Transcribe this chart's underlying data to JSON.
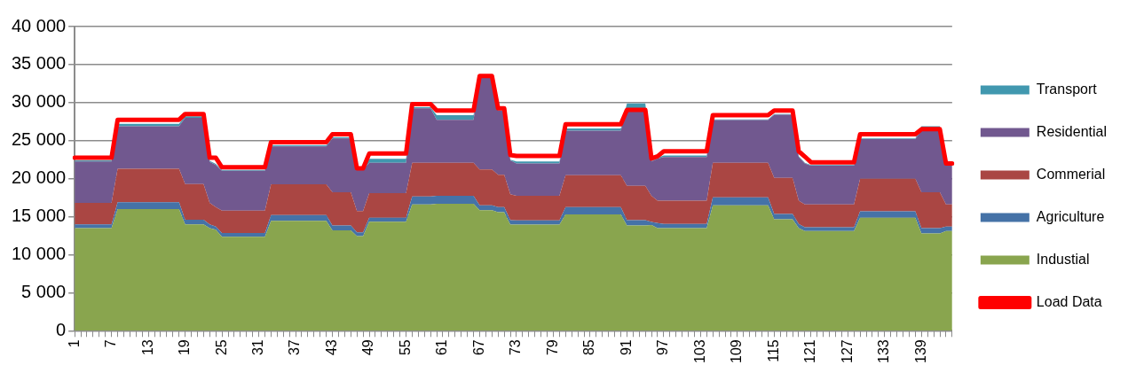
{
  "chart_data": {
    "type": "area",
    "stacked": true,
    "marker": "none",
    "grid": "y",
    "legend": "right",
    "categories": [
      "1",
      null,
      null,
      null,
      null,
      null,
      "7",
      null,
      null,
      null,
      null,
      null,
      "13",
      null,
      null,
      null,
      null,
      null,
      "19",
      null,
      null,
      null,
      null,
      null,
      "25",
      null,
      null,
      null,
      null,
      null,
      "31",
      null,
      null,
      null,
      null,
      null,
      "37",
      null,
      null,
      null,
      null,
      null,
      "43",
      null,
      null,
      null,
      null,
      null,
      "49",
      null,
      null,
      null,
      null,
      null,
      "55",
      null,
      null,
      null,
      null,
      null,
      "61",
      null,
      null,
      null,
      null,
      null,
      "67",
      null,
      null,
      null,
      null,
      null,
      "73",
      null,
      null,
      null,
      null,
      null,
      "79",
      null,
      null,
      null,
      null,
      null,
      "85",
      null,
      null,
      null,
      null,
      null,
      "91",
      null,
      null,
      null,
      null,
      null,
      "97",
      null,
      null,
      null,
      null,
      null,
      "103",
      null,
      null,
      null,
      null,
      null,
      "109",
      null,
      null,
      null,
      null,
      null,
      "115",
      null,
      null,
      null,
      null,
      null,
      "121",
      null,
      null,
      null,
      null,
      null,
      "127",
      null,
      null,
      null,
      null,
      null,
      "133",
      null,
      null,
      null,
      null,
      null,
      "139",
      null,
      null,
      null,
      null,
      null
    ],
    "ylim": [
      0,
      40000
    ],
    "yticks": [
      0,
      {
        "value": 5000,
        "label": "5 000"
      },
      {
        "value": 10000,
        "label": "10 000"
      },
      {
        "value": 15000,
        "label": "15 000"
      },
      {
        "value": 20000,
        "label": "20 000"
      },
      {
        "value": 25000,
        "label": "25 000"
      },
      {
        "value": 30000,
        "label": "30 000"
      },
      {
        "value": 35000,
        "label": "35 000"
      },
      {
        "value": 40000,
        "label": "40 000"
      }
    ],
    "series": [
      {
        "name": "Industial",
        "color": "#89a54e",
        "values": [
          13500,
          13500,
          13500,
          13500,
          13500,
          13500,
          13500,
          16000,
          16000,
          16000,
          16000,
          16000,
          16000,
          16000,
          16000,
          16000,
          16000,
          16000,
          14000,
          14000,
          14000,
          14000,
          13500,
          13300,
          12350,
          12350,
          12350,
          12350,
          12350,
          12350,
          12350,
          12350,
          14450,
          14450,
          14450,
          14450,
          14450,
          14450,
          14450,
          14450,
          14450,
          14450,
          13200,
          13200,
          13200,
          13200,
          12450,
          12450,
          14350,
          14350,
          14350,
          14350,
          14350,
          14350,
          14350,
          16600,
          16600,
          16600,
          16600,
          16700,
          16700,
          16700,
          16700,
          16700,
          16700,
          16700,
          15850,
          15850,
          15850,
          15600,
          15600,
          13950,
          13950,
          13950,
          13950,
          13950,
          13950,
          13950,
          13950,
          13950,
          15300,
          15300,
          15300,
          15300,
          15300,
          15300,
          15300,
          15300,
          15300,
          15300,
          13850,
          13850,
          13850,
          13850,
          13900,
          13500,
          13500,
          13500,
          13500,
          13500,
          13500,
          13500,
          13500,
          13500,
          16500,
          16500,
          16500,
          16500,
          16500,
          16500,
          16500,
          16500,
          16500,
          16500,
          14650,
          14650,
          14650,
          14650,
          13500,
          13100,
          13100,
          13100,
          13100,
          13100,
          13100,
          13100,
          13100,
          13100,
          14850,
          14850,
          14850,
          14850,
          14850,
          14850,
          14850,
          14850,
          14850,
          14850,
          12800,
          12800,
          12800,
          12800,
          13100,
          13100
        ]
      },
      {
        "name": "Agriculture",
        "color": "#4572a7",
        "values": [
          500,
          500,
          500,
          500,
          500,
          500,
          500,
          900,
          900,
          900,
          900,
          900,
          900,
          900,
          900,
          900,
          900,
          900,
          600,
          600,
          600,
          600,
          500,
          400,
          500,
          500,
          500,
          500,
          500,
          500,
          500,
          500,
          750,
          750,
          750,
          750,
          750,
          750,
          750,
          750,
          750,
          750,
          650,
          650,
          650,
          650,
          500,
          500,
          500,
          500,
          500,
          500,
          500,
          500,
          500,
          1050,
          1050,
          1050,
          1050,
          1050,
          1050,
          1050,
          1050,
          1050,
          1050,
          1050,
          650,
          650,
          650,
          650,
          650,
          600,
          550,
          550,
          550,
          550,
          550,
          550,
          550,
          550,
          950,
          950,
          950,
          950,
          950,
          950,
          950,
          950,
          950,
          950,
          700,
          700,
          700,
          700,
          400,
          650,
          550,
          550,
          550,
          550,
          550,
          550,
          550,
          550,
          1050,
          1050,
          1050,
          1050,
          1050,
          1050,
          1050,
          1050,
          1050,
          1050,
          700,
          700,
          700,
          700,
          550,
          500,
          500,
          500,
          500,
          500,
          500,
          500,
          500,
          500,
          850,
          850,
          850,
          850,
          850,
          850,
          850,
          850,
          850,
          850,
          700,
          700,
          700,
          700,
          600,
          600
        ]
      },
      {
        "name": "Commerial",
        "color": "#aa4643",
        "values": [
          2800,
          2800,
          2800,
          2800,
          2800,
          2800,
          2800,
          4400,
          4400,
          4400,
          4400,
          4400,
          4400,
          4400,
          4400,
          4400,
          4400,
          4400,
          4700,
          4700,
          4700,
          4700,
          2800,
          2550,
          2950,
          2950,
          2950,
          2950,
          2950,
          2950,
          2950,
          2950,
          4050,
          4050,
          4050,
          4050,
          4050,
          4050,
          4050,
          4050,
          4050,
          4050,
          4350,
          4350,
          4350,
          4350,
          2800,
          2800,
          3250,
          3250,
          3250,
          3250,
          3250,
          3250,
          3250,
          4450,
          4450,
          4450,
          4450,
          4350,
          4350,
          4350,
          4350,
          4350,
          4350,
          4350,
          4700,
          4700,
          4700,
          4250,
          4250,
          3400,
          3250,
          3250,
          3250,
          3250,
          3250,
          3250,
          3250,
          3250,
          4200,
          4200,
          4200,
          4200,
          4200,
          4200,
          4200,
          4200,
          4200,
          4200,
          4500,
          4500,
          4500,
          4500,
          3450,
          2950,
          3050,
          3050,
          3050,
          3050,
          3050,
          3050,
          3050,
          3050,
          4550,
          4550,
          4550,
          4550,
          4550,
          4550,
          4550,
          4550,
          4550,
          4550,
          4750,
          4750,
          4750,
          4750,
          3050,
          3000,
          3000,
          3000,
          3000,
          3000,
          3000,
          3000,
          3000,
          3000,
          4300,
          4300,
          4300,
          4300,
          4300,
          4300,
          4300,
          4300,
          4300,
          4300,
          4700,
          4700,
          4700,
          4700,
          2900,
          2900
        ]
      },
      {
        "name": "Residential",
        "color": "#71588f",
        "values": [
          5450,
          5450,
          5450,
          5450,
          5450,
          5450,
          5450,
          5600,
          5600,
          5600,
          5600,
          5600,
          5600,
          5600,
          5600,
          5600,
          5600,
          5600,
          8700,
          8700,
          8700,
          8700,
          5400,
          5550,
          5250,
          5250,
          5250,
          5250,
          5250,
          5250,
          5250,
          5250,
          5000,
          5000,
          5000,
          5000,
          5000,
          5000,
          5000,
          5000,
          5000,
          5000,
          7100,
          7100,
          7100,
          7100,
          5400,
          5400,
          4000,
          4000,
          4000,
          4000,
          4000,
          4000,
          4000,
          7150,
          7150,
          7150,
          7150,
          5650,
          5650,
          5650,
          5650,
          5650,
          5650,
          5650,
          12150,
          12150,
          12150,
          8500,
          8500,
          4450,
          4250,
          4250,
          4250,
          4250,
          4250,
          4250,
          4250,
          4250,
          5850,
          5850,
          5850,
          5850,
          5850,
          5850,
          5850,
          5850,
          5850,
          5850,
          10200,
          10200,
          10200,
          10200,
          4500,
          5550,
          5750,
          5750,
          5750,
          5750,
          5750,
          5750,
          5750,
          5750,
          5600,
          5600,
          5600,
          5600,
          5600,
          5600,
          5600,
          5600,
          5600,
          5600,
          8300,
          8300,
          8300,
          8300,
          5750,
          5400,
          5100,
          5100,
          5100,
          5100,
          5100,
          5100,
          5100,
          5100,
          5200,
          5200,
          5200,
          5200,
          5200,
          5200,
          5200,
          5200,
          5200,
          5200,
          8200,
          8200,
          8200,
          8200,
          5200,
          5200
        ]
      },
      {
        "name": "Transport",
        "color": "#4198af",
        "values": [
          150,
          150,
          150,
          150,
          150,
          150,
          150,
          300,
          300,
          300,
          300,
          300,
          300,
          300,
          300,
          300,
          300,
          300,
          200,
          200,
          200,
          200,
          150,
          150,
          100,
          100,
          100,
          100,
          100,
          100,
          100,
          100,
          150,
          150,
          150,
          150,
          150,
          150,
          150,
          150,
          150,
          150,
          150,
          150,
          150,
          150,
          100,
          100,
          500,
          500,
          500,
          500,
          500,
          500,
          500,
          150,
          150,
          150,
          150,
          600,
          600,
          600,
          600,
          600,
          600,
          600,
          0,
          0,
          0,
          0,
          0,
          100,
          250,
          250,
          250,
          250,
          250,
          250,
          250,
          250,
          300,
          300,
          300,
          300,
          300,
          300,
          300,
          300,
          300,
          300,
          650,
          650,
          650,
          650,
          100,
          100,
          200,
          200,
          200,
          200,
          200,
          200,
          200,
          200,
          100,
          100,
          100,
          100,
          100,
          100,
          100,
          100,
          100,
          100,
          100,
          100,
          100,
          100,
          100,
          100,
          100,
          100,
          100,
          100,
          100,
          100,
          100,
          100,
          100,
          100,
          100,
          100,
          100,
          100,
          100,
          100,
          100,
          100,
          500,
          500,
          500,
          500,
          100,
          100
        ]
      },
      {
        "name": "Load Data",
        "type": "line",
        "color": "#ff0000",
        "values": [
          22750,
          22750,
          22750,
          22750,
          22750,
          22750,
          22750,
          27750,
          27750,
          27750,
          27750,
          27750,
          27750,
          27750,
          27750,
          27750,
          27750,
          27750,
          28500,
          28500,
          28500,
          28500,
          22750,
          22750,
          21500,
          21500,
          21500,
          21500,
          21500,
          21500,
          21500,
          21500,
          24800,
          24800,
          24800,
          24800,
          24800,
          24800,
          24800,
          24800,
          24800,
          24800,
          25850,
          25850,
          25850,
          25850,
          21350,
          21350,
          23300,
          23300,
          23300,
          23300,
          23300,
          23300,
          23300,
          29800,
          29800,
          29800,
          29800,
          28950,
          28950,
          28950,
          28950,
          28950,
          28950,
          28950,
          33500,
          33500,
          33500,
          29250,
          29250,
          23100,
          23000,
          23000,
          23000,
          23000,
          23000,
          23000,
          23000,
          23000,
          27150,
          27150,
          27150,
          27150,
          27150,
          27150,
          27150,
          27150,
          27150,
          27150,
          29050,
          29050,
          29050,
          29050,
          22650,
          22950,
          23600,
          23600,
          23600,
          23600,
          23600,
          23600,
          23600,
          23600,
          28350,
          28350,
          28350,
          28350,
          28350,
          28350,
          28350,
          28350,
          28350,
          28350,
          28950,
          28950,
          28950,
          28950,
          23600,
          22900,
          22150,
          22150,
          22150,
          22150,
          22150,
          22150,
          22150,
          22150,
          25850,
          25850,
          25850,
          25850,
          25850,
          25850,
          25850,
          25850,
          25850,
          25850,
          26500,
          26500,
          26500,
          26500,
          22000,
          22000
        ]
      }
    ]
  }
}
